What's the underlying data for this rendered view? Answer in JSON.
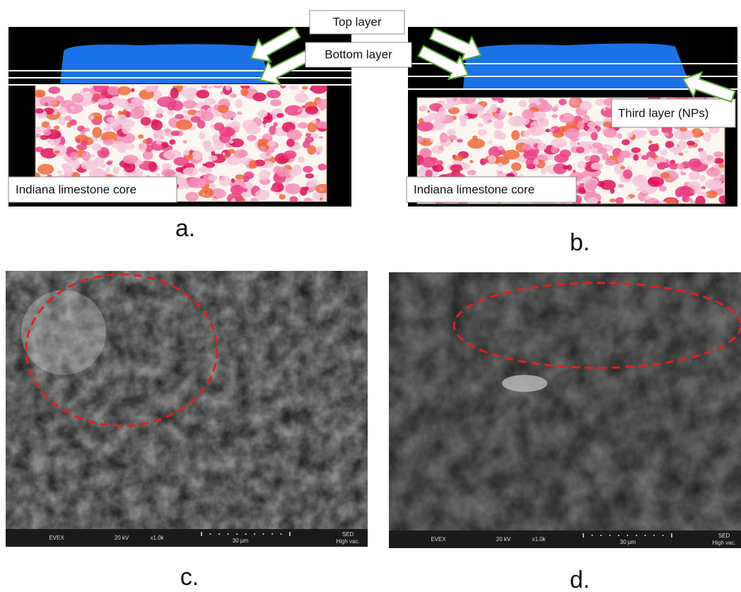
{
  "callouts": {
    "top_layer": "Top layer",
    "bottom_layer": "Bottom layer",
    "third_layer": "Third layer (NPs)"
  },
  "panel_a": {
    "core_label": "Indiana limestone core",
    "caption": "a."
  },
  "panel_b": {
    "core_label": "Indiana limestone core",
    "caption": "b."
  },
  "panel_c": {
    "caption": "c.",
    "scale_bar": {
      "detector": "EVEX",
      "voltage": "20 kV",
      "magnification": "x1.0k",
      "scale": "30 µm",
      "mode": "SED",
      "vacuum": "High vac."
    }
  },
  "panel_d": {
    "caption": "d.",
    "scale_bar": {
      "detector": "EVEX",
      "voltage": "20 kV",
      "magnification": "x1.0k",
      "scale": "30 µm",
      "mode": "SED",
      "vacuum": "High vac."
    }
  }
}
